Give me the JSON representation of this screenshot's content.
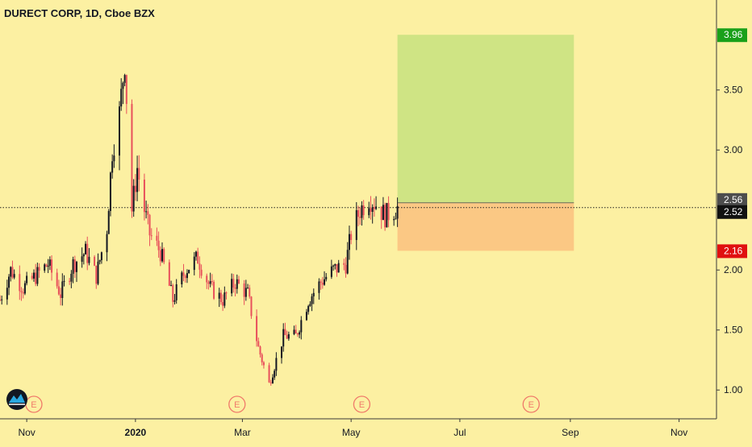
{
  "header": {
    "title": "DURECT CORP, 1D, Cboe BZX"
  },
  "price_axis": {
    "ticks": [
      "1.00",
      "1.50",
      "2.00",
      "3.00",
      "3.50"
    ],
    "tick_values": [
      1.0,
      1.5,
      2.0,
      3.0,
      3.5
    ]
  },
  "time_axis": {
    "labels": [
      "Nov",
      "2020",
      "Mar",
      "May",
      "Jul",
      "Sep",
      "Nov"
    ],
    "bold_label": "2020"
  },
  "earnings_markers": [
    "E",
    "E",
    "E",
    "E"
  ],
  "price_badges": {
    "target": {
      "label": "3.96",
      "value": 3.96,
      "color": "#1aa01a"
    },
    "entry": {
      "label": "2.56",
      "value": 2.56,
      "color": "#4d4d4d"
    },
    "last": {
      "label": "2.52",
      "value": 2.52,
      "color": "#111111"
    },
    "stop": {
      "label": "2.16",
      "value": 2.16,
      "color": "#e01010"
    }
  },
  "colors": {
    "background": "#fcf0a2",
    "profit_zone": "#cfe484",
    "loss_zone": "#fbc884",
    "up_candle": "#131722",
    "down_candle": "#e8505b"
  },
  "chart_data": {
    "type": "candlestick",
    "title": "DURECT CORP, 1D, Cboe BZX",
    "y_range": [
      0.76,
      4.25
    ],
    "x_range": [
      "2019-10-17",
      "2020-11-22"
    ],
    "x_ticks": [
      "Nov",
      "2020",
      "Mar",
      "May",
      "Jul",
      "Sep",
      "Nov"
    ],
    "y_ticks": [
      1.0,
      1.5,
      2.0,
      3.0,
      3.5
    ],
    "last_price": 2.52,
    "long_position": {
      "entry": 2.56,
      "target": 3.96,
      "stop": 2.16,
      "start": "2020-05-27",
      "end": "2020-09-03"
    },
    "close_series": {
      "x": [
        "2019-10-17",
        "2019-10-23",
        "2019-10-30",
        "2019-11-06",
        "2019-11-13",
        "2019-11-20",
        "2019-11-27",
        "2019-12-04",
        "2019-12-10",
        "2019-12-16",
        "2019-12-19",
        "2019-12-23",
        "2019-12-26",
        "2019-12-30",
        "2020-01-02",
        "2020-01-06",
        "2020-01-09",
        "2020-01-15",
        "2020-01-22",
        "2020-01-29",
        "2020-02-05",
        "2020-02-12",
        "2020-02-19",
        "2020-02-26",
        "2020-03-04",
        "2020-03-10",
        "2020-03-16",
        "2020-03-19",
        "2020-03-24",
        "2020-03-31",
        "2020-04-07",
        "2020-04-14",
        "2020-04-21",
        "2020-04-28",
        "2020-05-01",
        "2020-05-06",
        "2020-05-11",
        "2020-05-15",
        "2020-05-20",
        "2020-05-27"
      ],
      "close": [
        1.75,
        2.0,
        1.85,
        1.95,
        2.05,
        1.8,
        2.05,
        2.15,
        1.95,
        2.35,
        3.0,
        3.3,
        3.75,
        2.5,
        2.85,
        2.5,
        2.3,
        2.15,
        1.75,
        2.0,
        2.1,
        1.85,
        1.75,
        1.9,
        1.8,
        1.35,
        1.05,
        1.2,
        1.45,
        1.45,
        1.75,
        1.9,
        2.0,
        2.05,
        2.3,
        2.5,
        2.6,
        2.55,
        2.45,
        2.52
      ]
    }
  }
}
